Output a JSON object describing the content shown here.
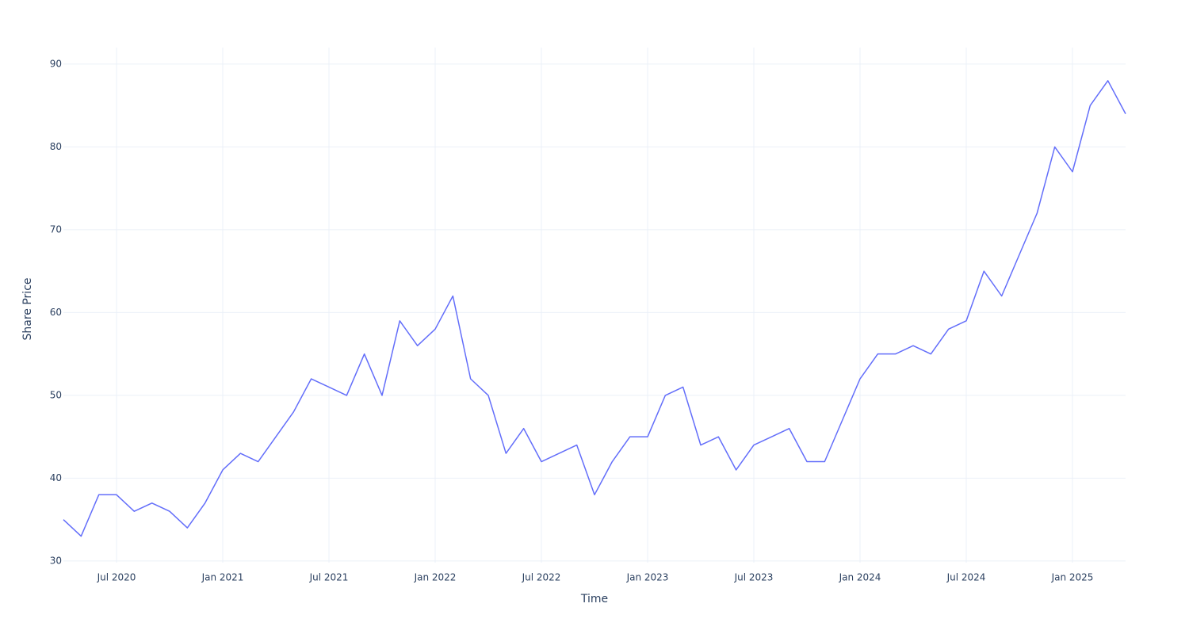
{
  "chart_data": {
    "type": "line",
    "xlabel": "Time",
    "ylabel": "Share Price",
    "x": [
      "2020-04",
      "2020-05",
      "2020-06",
      "2020-07",
      "2020-08",
      "2020-09",
      "2020-10",
      "2020-11",
      "2020-12",
      "2021-01",
      "2021-02",
      "2021-03",
      "2021-04",
      "2021-05",
      "2021-06",
      "2021-07",
      "2021-08",
      "2021-09",
      "2021-10",
      "2021-11",
      "2021-12",
      "2022-01",
      "2022-02",
      "2022-03",
      "2022-04",
      "2022-05",
      "2022-06",
      "2022-07",
      "2022-08",
      "2022-09",
      "2022-10",
      "2022-11",
      "2022-12",
      "2023-01",
      "2023-02",
      "2023-03",
      "2023-04",
      "2023-05",
      "2023-06",
      "2023-07",
      "2023-08",
      "2023-09",
      "2023-10",
      "2023-11",
      "2023-12",
      "2024-01",
      "2024-02",
      "2024-03",
      "2024-04",
      "2024-05",
      "2024-06",
      "2024-07",
      "2024-08",
      "2024-09",
      "2024-10",
      "2024-11",
      "2024-12",
      "2025-01",
      "2025-02",
      "2025-03",
      "2025-04"
    ],
    "series": [
      {
        "color": "#636efa",
        "values": [
          35,
          33,
          38,
          38,
          36,
          37,
          36,
          34,
          37,
          41,
          43,
          42,
          45,
          48,
          52,
          51,
          50,
          55,
          50,
          59,
          56,
          58,
          62,
          52,
          50,
          43,
          46,
          42,
          43,
          44,
          38,
          42,
          45,
          45,
          50,
          51,
          44,
          45,
          41,
          44,
          45,
          46,
          42,
          42,
          47,
          52,
          55,
          55,
          56,
          55,
          58,
          59,
          65,
          62,
          67,
          72,
          80,
          77,
          85,
          88,
          84
        ]
      }
    ],
    "xlim": [
      "2020-04",
      "2025-04"
    ],
    "xticks": [
      {
        "value": "2020-07",
        "label": "Jul 2020"
      },
      {
        "value": "2021-01",
        "label": "Jan 2021"
      },
      {
        "value": "2021-07",
        "label": "Jul 2021"
      },
      {
        "value": "2022-01",
        "label": "Jan 2022"
      },
      {
        "value": "2022-07",
        "label": "Jul 2022"
      },
      {
        "value": "2023-01",
        "label": "Jan 2023"
      },
      {
        "value": "2023-07",
        "label": "Jul 2023"
      },
      {
        "value": "2024-01",
        "label": "Jan 2024"
      },
      {
        "value": "2024-07",
        "label": "Jul 2024"
      },
      {
        "value": "2025-01",
        "label": "Jan 2025"
      }
    ],
    "ylim": [
      29.8,
      92
    ],
    "yticks": [
      30,
      40,
      50,
      60,
      70,
      80,
      90
    ],
    "grid": true
  }
}
